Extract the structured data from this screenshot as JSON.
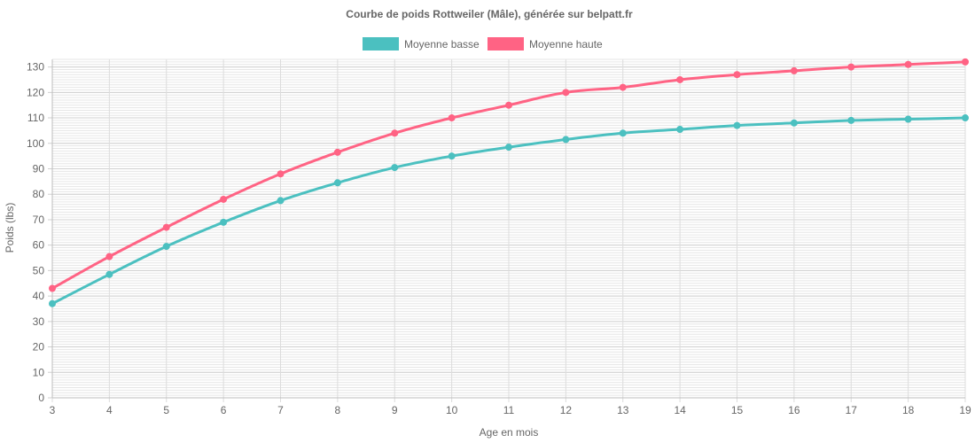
{
  "chart_data": {
    "type": "line",
    "title": "Courbe de poids Rottweiler (Mâle), générée sur belpatt.fr",
    "xlabel": "Age en mois",
    "ylabel": "Poids (lbs)",
    "x": [
      3,
      4,
      5,
      6,
      7,
      8,
      9,
      10,
      11,
      12,
      13,
      14,
      15,
      16,
      17,
      18,
      19
    ],
    "xlim": [
      3,
      19
    ],
    "ylim": [
      0,
      133
    ],
    "y_ticks": [
      0,
      10,
      20,
      30,
      40,
      50,
      60,
      70,
      80,
      90,
      100,
      110,
      120,
      130
    ],
    "grid": true,
    "legend_position": "top",
    "series": [
      {
        "name": "Moyenne basse",
        "color": "#4bc0c0",
        "values": [
          37,
          48.5,
          59.5,
          69,
          77.5,
          84.5,
          90.5,
          95,
          98.5,
          101.5,
          104,
          105.5,
          107,
          108,
          109,
          109.5,
          110
        ]
      },
      {
        "name": "Moyenne haute",
        "color": "#ff6384",
        "values": [
          43,
          55.5,
          67,
          78,
          88,
          96.5,
          104,
          110,
          115,
          120,
          122,
          125,
          127,
          128.5,
          130,
          131,
          132
        ]
      }
    ]
  }
}
